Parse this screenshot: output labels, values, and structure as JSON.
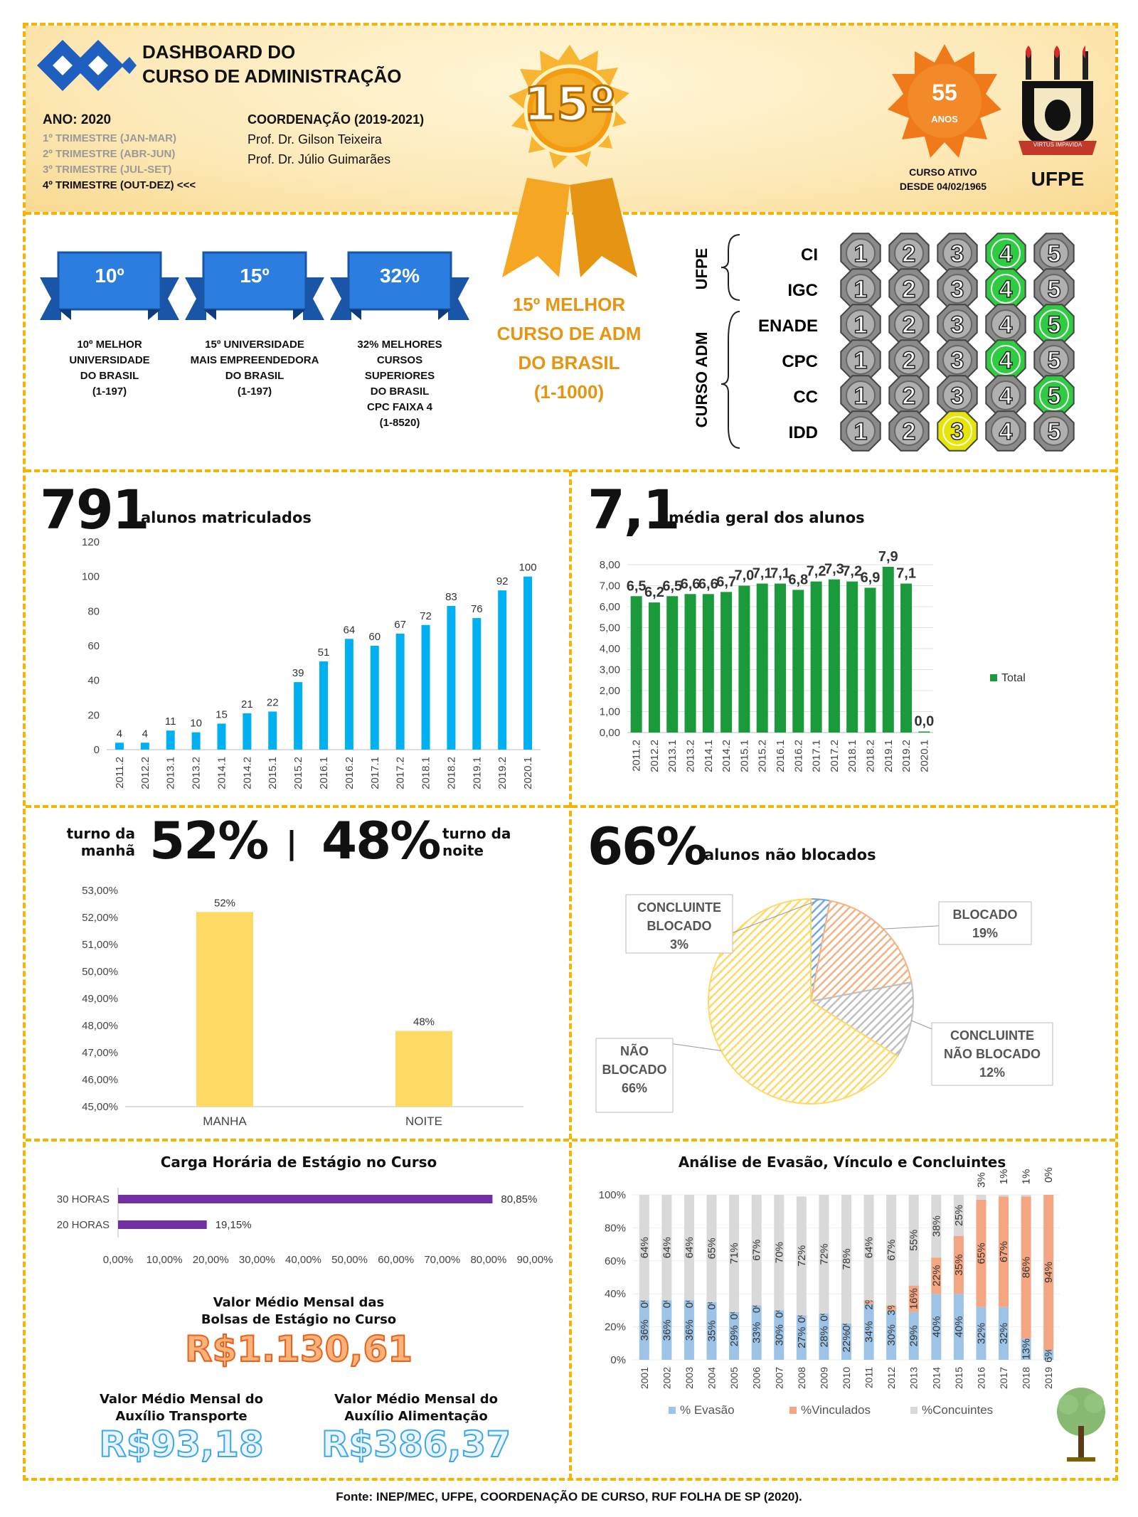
{
  "header": {
    "title_line1": "DASHBOARD DO",
    "title_line2": "CURSO DE ADMINISTRAÇÃO",
    "year": "ANO: 2020",
    "trimesters": [
      "1º TRIMESTRE (JAN-MAR)",
      "2º TRIMESTRE (ABR-JUN)",
      "3º TRIMESTRE (JUL-SET)",
      "4º TRIMESTRE (OUT-DEZ) <<<"
    ],
    "coord_title": "COORDENAÇÃO (2019-2021)",
    "coord_names": [
      "Prof. Dr. Gilson Teixeira",
      "Prof. Dr. Júlio Guimarães"
    ],
    "medal_rank": "15º",
    "years_badge_num": "55",
    "years_badge_label": "ANOS",
    "active_line1": "CURSO ATIVO",
    "active_line2": "DESDE 04/02/1965",
    "ufpe_label": "UFPE",
    "ufpe_motto": "VIRTUS IMPAVIDA"
  },
  "rankings": {
    "ribbons": [
      {
        "value": "10º",
        "caption": [
          "10º MELHOR",
          "UNIVERSIDADE",
          "DO BRASIL",
          "(1-197)"
        ]
      },
      {
        "value": "15º",
        "caption": [
          "15º UNIVERSIDADE",
          "MAIS EMPREENDEDORA",
          "DO BRASIL",
          "(1-197)"
        ]
      },
      {
        "value": "32%",
        "caption": [
          "32% MELHORES",
          "CURSOS",
          "SUPERIORES",
          "DO BRASIL",
          "CPC FAIXA 4",
          "(1-8520)"
        ]
      }
    ],
    "medal_caption": [
      "15º MELHOR",
      "CURSO DE ADM",
      "DO BRASIL",
      "(1-1000)"
    ],
    "indicator_group_ufpe": "UFPE",
    "indicator_group_adm": "CURSO ADM",
    "indicators": [
      {
        "name": "CI",
        "highlight": 4,
        "color": "#2ecc40"
      },
      {
        "name": "IGC",
        "highlight": 4,
        "color": "#2ecc40"
      },
      {
        "name": "ENADE",
        "highlight": 5,
        "color": "#2ecc40"
      },
      {
        "name": "CPC",
        "highlight": 4,
        "color": "#2ecc40"
      },
      {
        "name": "CC",
        "highlight": 5,
        "color": "#2ecc40"
      },
      {
        "name": "IDD",
        "highlight": 3,
        "color": "#e6e600"
      }
    ],
    "scale": [
      "1",
      "2",
      "3",
      "4",
      "5"
    ]
  },
  "students": {
    "big_number": "791",
    "label": "alunos matriculados"
  },
  "grades": {
    "big_number": "7,1",
    "label": "média geral dos alunos",
    "legend": "Total"
  },
  "shift": {
    "label_morning": [
      "turno da",
      "manhã"
    ],
    "pct_morning": "52%",
    "sep": "|",
    "pct_night": "48%",
    "label_night": [
      "turno da",
      "noite"
    ]
  },
  "blocked": {
    "big_number": "66%",
    "label": "alunos não blocados"
  },
  "internship": {
    "title": "Carga Horária de Estágio no Curso",
    "grant_title": [
      "Valor Médio Mensal das",
      "Bolsas de Estágio no Curso"
    ],
    "grant_value": "R$1.130,61",
    "transport_title": [
      "Valor Médio Mensal do",
      "Auxílio Transporte"
    ],
    "transport_value": "R$93,18",
    "food_title": [
      "Valor Médio Mensal do",
      "Auxílio Alimentação"
    ],
    "food_value": "R$386,37"
  },
  "dropout": {
    "title": "Análise de Evasão, Vínculo e Concluintes"
  },
  "footer": "Fonte: INEP/MEC, UFPE, COORDENAÇÃO DE CURSO, RUF FOLHA DE SP (2020).",
  "colors": {
    "accent": "#f4b400",
    "blue": "#1f6fd1",
    "cyan": "#00b0f0",
    "green": "#1a9a3a",
    "yellow": "#ffd966",
    "purple": "#7030a0",
    "orange": "#f4a582",
    "lightblue": "#9dc3e6",
    "grey": "#d9d9d9"
  },
  "chart_data": [
    {
      "type": "bar",
      "categories": [
        "2011.2",
        "2012.2",
        "2013.1",
        "2013.2",
        "2014.1",
        "2014.2",
        "2015.1",
        "2015.2",
        "2016.1",
        "2016.2",
        "2017.1",
        "2017.2",
        "2018.1",
        "2018.2",
        "2019.1",
        "2019.2",
        "2020.1"
      ],
      "values": [
        4,
        4,
        11,
        10,
        15,
        21,
        22,
        39,
        51,
        64,
        60,
        67,
        72,
        83,
        76,
        92,
        100
      ],
      "ylim": [
        0,
        120
      ],
      "yticks": [
        "0",
        "20",
        "40",
        "60",
        "80",
        "100",
        "120"
      ],
      "title": "",
      "xlabel": "",
      "ylabel": ""
    },
    {
      "type": "bar",
      "categories": [
        "2011.2",
        "2012.2",
        "2013.1",
        "2013.2",
        "2014.1",
        "2014.2",
        "2015.1",
        "2015.2",
        "2016.1",
        "2016.2",
        "2017.1",
        "2017.2",
        "2018.1",
        "2018.2",
        "2019.1",
        "2019.2",
        "2020.1"
      ],
      "values": [
        6.5,
        6.2,
        6.5,
        6.6,
        6.6,
        6.7,
        7.0,
        7.1,
        7.1,
        6.8,
        7.2,
        7.3,
        7.2,
        6.9,
        7.9,
        7.1,
        0.0
      ],
      "labels": [
        "6,5",
        "6,2",
        "6,5",
        "6,6",
        "6,6",
        "6,7",
        "7,0",
        "7,1",
        "7,1",
        "6,8",
        "7,2",
        "7,3",
        "7,2",
        "6,9",
        "7,9",
        "7,1",
        "0,0"
      ],
      "ylim": [
        0,
        8
      ],
      "yticks": [
        "0,00",
        "1,00",
        "2,00",
        "3,00",
        "4,00",
        "5,00",
        "6,00",
        "7,00",
        "8,00"
      ],
      "series_name": "Total"
    },
    {
      "type": "bar",
      "categories": [
        "MANHA",
        "NOITE"
      ],
      "values": [
        52.2,
        47.8
      ],
      "labels": [
        "52%",
        "48%"
      ],
      "ylim": [
        45,
        53
      ],
      "yticks": [
        "45,00%",
        "46,00%",
        "47,00%",
        "48,00%",
        "49,00%",
        "50,00%",
        "51,00%",
        "52,00%",
        "53,00%"
      ]
    },
    {
      "type": "pie",
      "slices": [
        {
          "label": [
            "CONCLUINTE",
            "BLOCADO",
            "3%"
          ],
          "value": 3,
          "color": "#6fa8dc"
        },
        {
          "label": [
            "BLOCADO",
            "19%"
          ],
          "value": 19,
          "color": "#f4b183"
        },
        {
          "label": [
            "CONCLUINTE",
            "NÃO BLOCADO",
            "12%"
          ],
          "value": 12,
          "color": "#bfbfbf"
        },
        {
          "label": [
            "NÃO",
            "BLOCADO",
            "66%"
          ],
          "value": 66,
          "color": "#ffd966"
        }
      ]
    },
    {
      "type": "bar",
      "orientation": "horizontal",
      "title": "Carga Horária de Estágio no Curso",
      "categories": [
        "30 HORAS",
        "20 HORAS"
      ],
      "values": [
        80.85,
        19.15
      ],
      "labels": [
        "80,85%",
        "19,15%"
      ],
      "xlim": [
        0,
        90
      ],
      "xticks": [
        "0,00%",
        "10,00%",
        "20,00%",
        "30,00%",
        "40,00%",
        "50,00%",
        "60,00%",
        "70,00%",
        "80,00%",
        "90,00%"
      ]
    },
    {
      "type": "bar",
      "stacked": true,
      "title": "Análise de Evasão, Vínculo e Concluintes",
      "categories": [
        "2001",
        "2002",
        "2003",
        "2004",
        "2005",
        "2006",
        "2007",
        "2008",
        "2009",
        "2010",
        "2011",
        "2012",
        "2013",
        "2014",
        "2015",
        "2016",
        "2017",
        "2018",
        "2019"
      ],
      "yticks": [
        "0%",
        "20%",
        "40%",
        "60%",
        "80%",
        "100%"
      ],
      "series": [
        {
          "name": "% Evasão",
          "values": [
            36,
            36,
            36,
            35,
            29,
            33,
            30,
            27,
            28,
            22,
            34,
            30,
            29,
            40,
            40,
            32,
            32,
            13,
            6
          ]
        },
        {
          "name": "%Vinculados",
          "values": [
            0,
            0,
            0,
            0,
            0,
            0,
            0,
            0,
            0,
            0,
            2,
            3,
            16,
            22,
            35,
            65,
            67,
            86,
            94
          ]
        },
        {
          "name": "%Concuintes",
          "values": [
            64,
            64,
            64,
            65,
            71,
            67,
            70,
            72,
            72,
            78,
            64,
            67,
            55,
            38,
            25,
            3,
            1,
            1,
            0
          ]
        }
      ]
    }
  ]
}
